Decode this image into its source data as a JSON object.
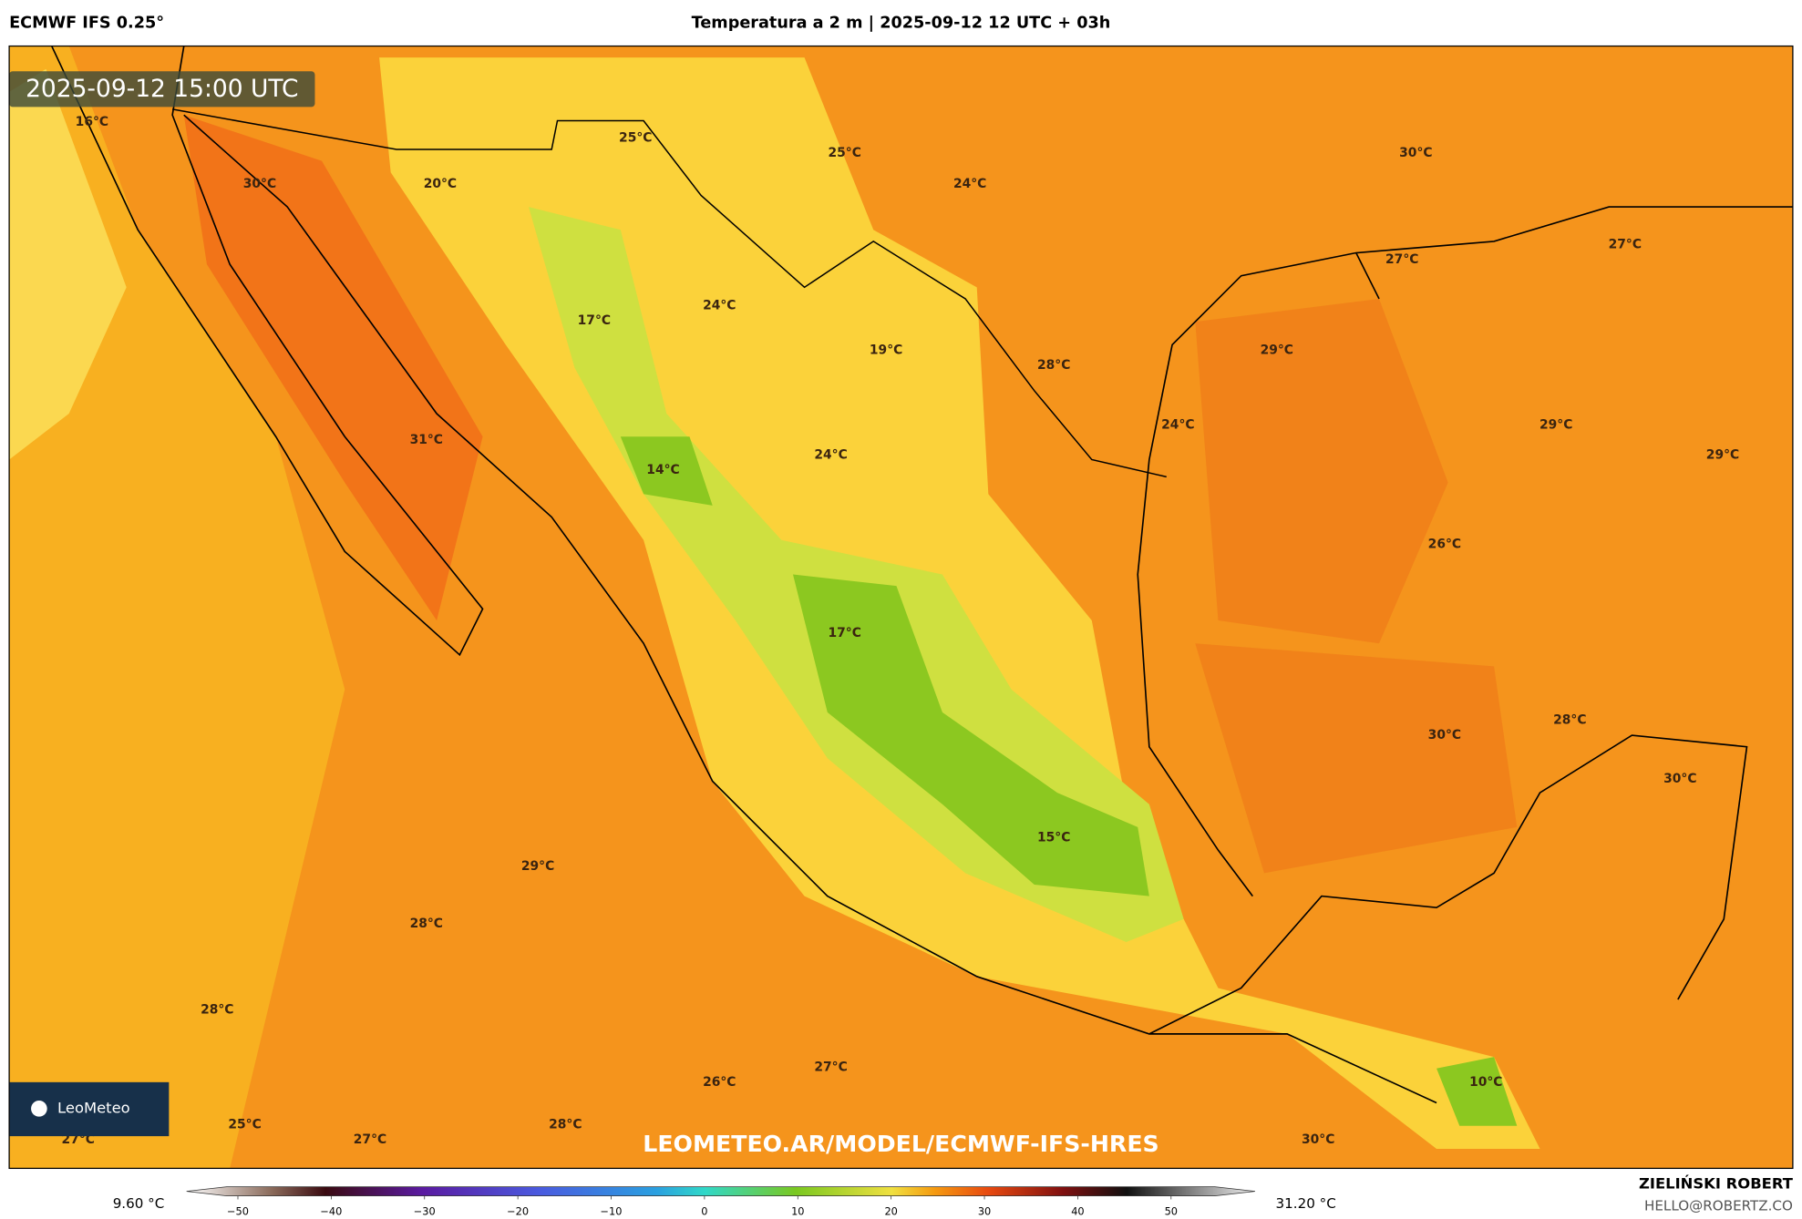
{
  "header": {
    "model": "ECMWF IFS 0.25°",
    "title": "Temperatura a 2 m | 2025-09-12 12 UTC + 03h"
  },
  "map": {
    "timestamp": "2025-09-12 15:00 UTC",
    "labels": [
      "16°C",
      "30°C",
      "20°C",
      "25°C",
      "25°C",
      "24°C",
      "30°C",
      "27°C",
      "27°C",
      "17°C",
      "24°C",
      "19°C",
      "28°C",
      "29°C",
      "31°C",
      "14°C",
      "24°C",
      "24°C",
      "29°C",
      "29°C",
      "26°C",
      "17°C",
      "30°C",
      "28°C",
      "30°C",
      "15°C",
      "29°C",
      "28°C",
      "28°C",
      "27°C",
      "26°C",
      "10°C",
      "25°C",
      "28°C",
      "27°C",
      "27°C",
      "30°C"
    ],
    "logo": "LeoMeteo",
    "watermark": "LEOMETEO.AR/MODEL/ECMWF-IFS-HRES"
  },
  "colorbar": {
    "min_label": "9.60 °C",
    "max_label": "31.20 °C",
    "lim": [
      -55.5,
      59
    ],
    "ticks": [
      {
        "value": -50,
        "label": "−50"
      },
      {
        "value": -40,
        "label": "−40"
      },
      {
        "value": -30,
        "label": "−30"
      },
      {
        "value": -20,
        "label": "−20"
      },
      {
        "value": -10,
        "label": "−10"
      },
      0,
      10,
      20,
      30,
      40,
      50
    ]
  },
  "footer": {
    "author": "ZIELIŃSKI ROBERT",
    "email": "HELLO@ROBERTZ.CO"
  }
}
